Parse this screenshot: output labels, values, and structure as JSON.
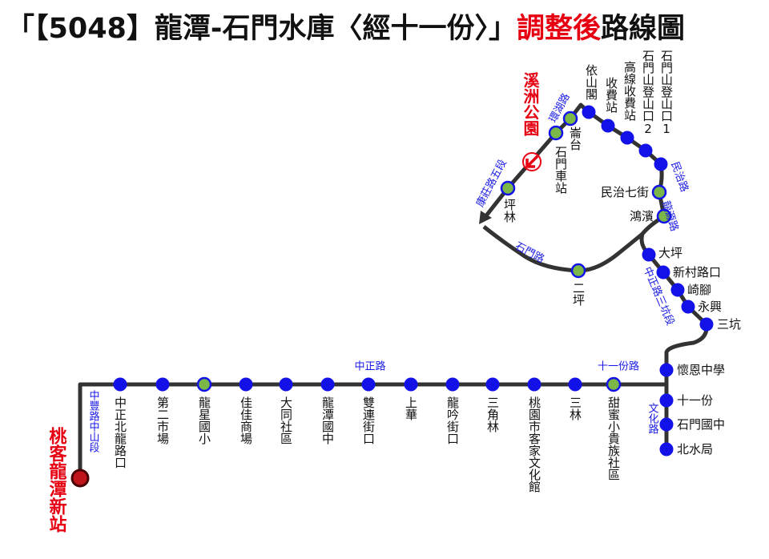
{
  "header": {
    "title": {
      "part1": "「【5048】龍潭-石門水庫〈經十一份〉」",
      "highlight": "調整後",
      "part2": "路線圖"
    }
  },
  "terminals": [
    "桃客龍潭新站",
    "溪洲公園"
  ],
  "stops": [
    "中正北龍路口",
    "第二市場",
    "龍星國小",
    "佳佳商場",
    "大同社區",
    "龍潭國中",
    "雙連街口",
    "上華",
    "龍吟街口",
    "三角林",
    "桃園市客家文化館",
    "三林",
    "甜蜜小貴族社區",
    "懷恩中學",
    "十一份",
    "石門國中",
    "北水局",
    "三坑",
    "永興",
    "崎腳",
    "新村路口",
    "大坪",
    "二坪",
    "鴻濱",
    "民治七街",
    "石門山登山口1",
    "石門山登山口2",
    "高線收費站",
    "收費站",
    "依山閣",
    "崙台",
    "石門車站",
    "坪林"
  ],
  "roads": [
    "中豐路中山段",
    "中正路",
    "十一份路",
    "文化路",
    "中正路三坑段",
    "龍源路",
    "民治路",
    "環湖路",
    "康莊路五段",
    "石門路"
  ]
}
